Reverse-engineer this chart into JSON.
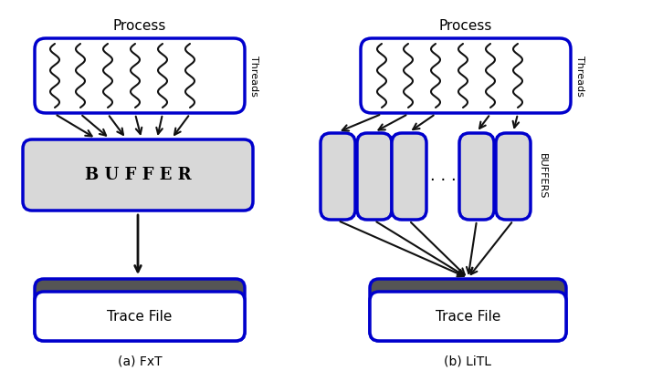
{
  "fig_width": 7.14,
  "fig_height": 4.29,
  "dpi": 100,
  "bg_color": "#ffffff",
  "blue_edge": "#0000cc",
  "dark_gray": "#555555",
  "light_gray": "#d8d8d8",
  "thread_color": "#111111",
  "arrow_color": "#111111",
  "label_a": "(a) FxT",
  "label_b": "(b) LiTL",
  "process_label": "Process",
  "threads_label": "Threads",
  "buffers_label": "BUFFERS",
  "buffer_label": "B U F F E R",
  "trace_label": "Trace File",
  "dots_label": ". . ."
}
